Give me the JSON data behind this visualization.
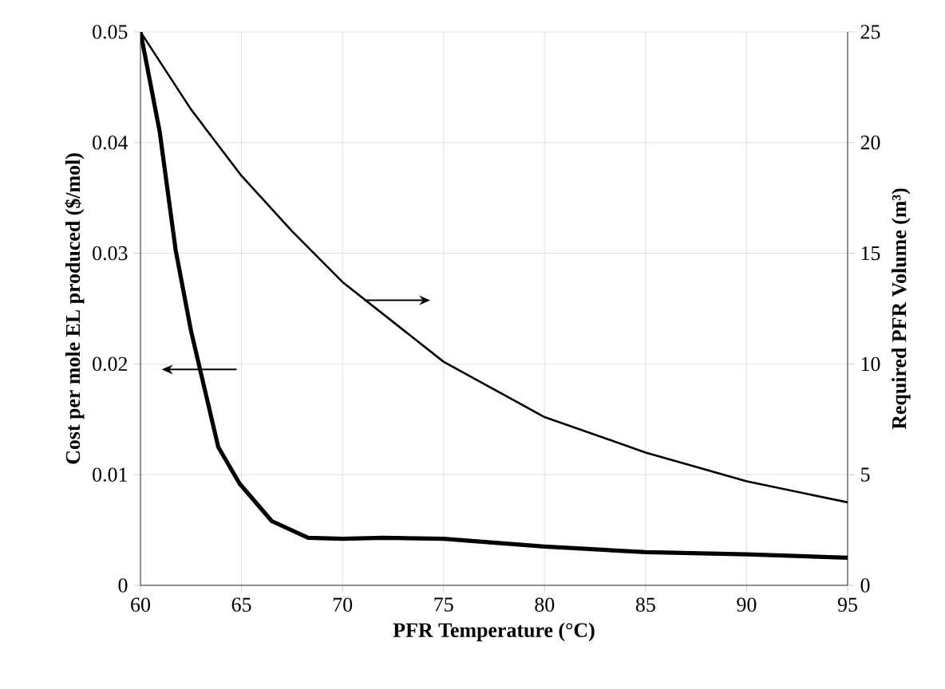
{
  "chart_data": {
    "type": "line",
    "xlabel": "PFR Temperature (°C)",
    "ylabel": "Cost per mole EL produced ($/mol)",
    "y2label": "Required PFR Volume (m³)",
    "xlim": [
      60,
      95
    ],
    "xticks": [
      60,
      65,
      70,
      75,
      80,
      85,
      90,
      95
    ],
    "ylim": [
      0,
      0.05
    ],
    "yticks": [
      0,
      0.01,
      0.02,
      0.03,
      0.04,
      0.05
    ],
    "y2lim": [
      0,
      25
    ],
    "y2ticks": [
      0,
      5,
      10,
      15,
      20,
      25
    ],
    "grid": true,
    "marker": "none",
    "line_style": "solid",
    "series": [
      {
        "color": "#000000",
        "axis": "y",
        "x": [
          60,
          60.95,
          61.74,
          62.5,
          63.85,
          64.9,
          66.5,
          68.3,
          70,
          72,
          75,
          80,
          85,
          90,
          95
        ],
        "values": [
          0.05,
          0.041,
          0.0303,
          0.023,
          0.0125,
          0.0092,
          0.0058,
          0.0043,
          0.0042,
          0.0043,
          0.0042,
          0.0035,
          0.003,
          0.0028,
          0.0025
        ]
      },
      {
        "color": "#000000",
        "axis": "y2",
        "x": [
          60,
          62.5,
          65,
          67.5,
          70,
          75,
          80,
          85,
          90,
          95
        ],
        "values": [
          25,
          21.5,
          18.5,
          16,
          13.7,
          10.1,
          7.6,
          6.0,
          4.7,
          3.75
        ]
      }
    ]
  }
}
